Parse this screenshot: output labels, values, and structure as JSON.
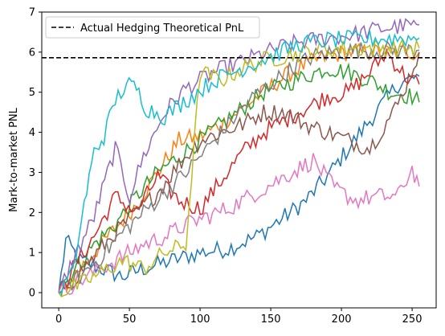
{
  "chart_data": {
    "type": "line",
    "title": "",
    "xlabel": "",
    "ylabel": "Mark-to-market PNL",
    "xlim": [
      -12,
      267
    ],
    "ylim": [
      -0.38,
      7.0
    ],
    "xticks": [
      "0",
      "50",
      "100",
      "150",
      "200",
      "250"
    ],
    "yticks": [
      "0",
      "1",
      "2",
      "3",
      "4",
      "5",
      "6",
      "7"
    ],
    "grid": false,
    "legend": {
      "placement": "top-left",
      "entries": [
        "Actual Hedging Theoretical PnL"
      ]
    },
    "reference_line": {
      "name": "Actual Hedging Theoretical PnL",
      "y": 5.86,
      "style": "dashed",
      "color": "#000000"
    },
    "series": [
      {
        "color": "#1f77b4",
        "x": [
          0,
          5,
          15,
          30,
          45,
          60,
          80,
          100,
          120,
          140,
          160,
          175,
          190,
          205,
          220,
          240,
          255
        ],
        "values": [
          0,
          1.3,
          0.8,
          0.6,
          0.4,
          0.6,
          0.8,
          1.0,
          1.1,
          1.4,
          1.9,
          2.3,
          2.9,
          3.6,
          4.3,
          5.2,
          5.4
        ]
      },
      {
        "color": "#ff7f0e",
        "x": [
          0,
          10,
          25,
          40,
          55,
          70,
          85,
          100,
          115,
          130,
          145,
          160,
          175,
          190,
          205,
          220,
          235,
          255
        ],
        "values": [
          0,
          0.4,
          1.0,
          1.6,
          2.2,
          3.0,
          3.8,
          3.9,
          4.2,
          4.6,
          5.0,
          5.4,
          5.7,
          5.9,
          6.0,
          6.0,
          6.0,
          6.0
        ]
      },
      {
        "color": "#2ca02c",
        "x": [
          0,
          10,
          25,
          40,
          55,
          70,
          85,
          100,
          115,
          130,
          145,
          160,
          175,
          190,
          205,
          220,
          235,
          250,
          255
        ],
        "values": [
          0,
          0.5,
          1.2,
          1.7,
          2.4,
          3.0,
          3.4,
          3.8,
          4.2,
          4.6,
          5.0,
          5.2,
          5.4,
          5.6,
          5.5,
          5.3,
          5.0,
          4.9,
          4.75
        ]
      },
      {
        "color": "#d62728",
        "x": [
          0,
          10,
          25,
          40,
          55,
          70,
          85,
          100,
          115,
          130,
          145,
          160,
          175,
          190,
          205,
          220,
          232,
          245,
          255
        ],
        "values": [
          0,
          0.6,
          1.4,
          2.4,
          2.0,
          2.9,
          2.3,
          2.1,
          2.8,
          3.5,
          4.0,
          4.3,
          4.6,
          4.9,
          5.0,
          5.5,
          6.0,
          5.4,
          5.2
        ]
      },
      {
        "color": "#9467bd",
        "x": [
          0,
          10,
          25,
          40,
          50,
          60,
          75,
          90,
          110,
          125,
          140,
          155,
          170,
          190,
          210,
          230,
          255
        ],
        "values": [
          0,
          0.8,
          1.9,
          3.6,
          2.4,
          3.4,
          4.5,
          5.1,
          5.5,
          5.7,
          5.9,
          6.1,
          6.25,
          6.35,
          6.45,
          6.6,
          6.68
        ]
      },
      {
        "color": "#8c564b",
        "x": [
          0,
          10,
          25,
          40,
          55,
          70,
          85,
          100,
          115,
          130,
          145,
          160,
          175,
          190,
          205,
          220,
          240,
          255
        ],
        "values": [
          0,
          0.3,
          0.9,
          1.5,
          2.0,
          2.5,
          3.2,
          3.8,
          4.0,
          4.2,
          4.5,
          4.5,
          4.2,
          4.0,
          3.8,
          3.6,
          4.7,
          6.0
        ]
      },
      {
        "color": "#e377c2",
        "x": [
          0,
          15,
          30,
          45,
          60,
          75,
          90,
          105,
          120,
          135,
          150,
          165,
          180,
          195,
          210,
          225,
          240,
          250,
          255
        ],
        "values": [
          0,
          0.3,
          0.6,
          0.9,
          1.2,
          1.4,
          1.7,
          1.9,
          2.1,
          2.4,
          2.7,
          3.0,
          3.3,
          2.6,
          2.3,
          2.4,
          2.4,
          3.1,
          2.65
        ]
      },
      {
        "color": "#7f7f7f",
        "x": [
          0,
          15,
          30,
          45,
          60,
          75,
          90,
          105,
          120,
          135,
          150,
          165,
          180,
          195,
          210,
          225,
          240,
          255
        ],
        "values": [
          0,
          0.4,
          0.9,
          1.5,
          2.0,
          2.5,
          3.0,
          3.6,
          4.2,
          4.8,
          5.2,
          5.6,
          5.9,
          6.0,
          6.05,
          6.05,
          6.05,
          6.05
        ]
      },
      {
        "color": "#bcbd22",
        "x": [
          0,
          15,
          30,
          45,
          60,
          75,
          90,
          100,
          115,
          130,
          145,
          160,
          175,
          190,
          205,
          220,
          235,
          255
        ],
        "values": [
          0,
          0.2,
          0.5,
          0.8,
          0.6,
          1.0,
          1.2,
          5.5,
          5.3,
          5.6,
          5.8,
          5.9,
          6.0,
          6.05,
          6.1,
          6.1,
          6.1,
          6.1
        ]
      },
      {
        "color": "#17becf",
        "x": [
          0,
          10,
          18,
          25,
          32,
          40,
          48,
          55,
          62,
          75,
          90,
          110,
          130,
          150,
          170,
          190,
          210,
          230,
          255
        ],
        "values": [
          0,
          0.5,
          2.2,
          3.5,
          3.9,
          4.8,
          5.2,
          5.1,
          4.6,
          4.4,
          4.8,
          5.3,
          5.6,
          5.9,
          6.2,
          6.3,
          6.32,
          6.34,
          6.35
        ]
      }
    ]
  }
}
